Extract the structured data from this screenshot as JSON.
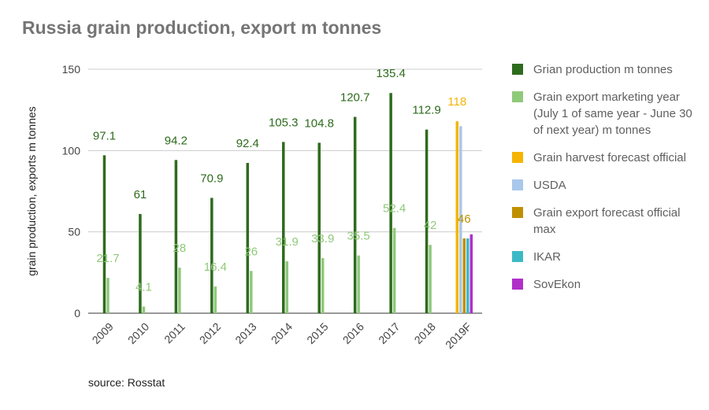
{
  "title": "Russia grain production, export m tonnes",
  "source": "source: Rosstat",
  "chart_data": {
    "type": "bar",
    "ylabel": "grain production, exports m tonnes",
    "ylim": [
      0,
      150
    ],
    "yticks": [
      0,
      50,
      100,
      150
    ],
    "grid": true,
    "legend_position": "right",
    "categories": [
      "2009",
      "2010",
      "2011",
      "2012",
      "2013",
      "2014",
      "2015",
      "2016",
      "2017",
      "2018",
      "2019F"
    ],
    "series": [
      {
        "name": "Grian production m tonnes",
        "color": "#2e6b1d",
        "show_labels": true,
        "values": [
          97.1,
          61,
          94.2,
          70.9,
          92.4,
          105.3,
          104.8,
          120.7,
          135.4,
          112.9,
          null
        ]
      },
      {
        "name": "Grain export marketing year (July 1 of same year - June 30 of next year) m tonnes",
        "color": "#8fc97a",
        "show_labels": true,
        "values": [
          21.7,
          4.1,
          28,
          16.4,
          26,
          31.9,
          33.9,
          35.5,
          52.4,
          42,
          null
        ]
      },
      {
        "name": "Grain harvest forecast official",
        "color": "#f5b400",
        "show_labels": true,
        "values": [
          null,
          null,
          null,
          null,
          null,
          null,
          null,
          null,
          null,
          null,
          118
        ]
      },
      {
        "name": "USDA",
        "color": "#a8c8ec",
        "show_labels": false,
        "values": [
          null,
          null,
          null,
          null,
          null,
          null,
          null,
          null,
          null,
          null,
          115
        ]
      },
      {
        "name": "Grain export forecast official max",
        "color": "#bf9000",
        "show_labels": true,
        "values": [
          null,
          null,
          null,
          null,
          null,
          null,
          null,
          null,
          null,
          null,
          46
        ]
      },
      {
        "name": "IKAR",
        "color": "#3db9c6",
        "show_labels": false,
        "values": [
          null,
          null,
          null,
          null,
          null,
          null,
          null,
          null,
          null,
          null,
          46
        ]
      },
      {
        "name": "SovEkon",
        "color": "#b030c8",
        "show_labels": false,
        "values": [
          null,
          null,
          null,
          null,
          null,
          null,
          null,
          null,
          null,
          null,
          48.5
        ]
      }
    ]
  }
}
